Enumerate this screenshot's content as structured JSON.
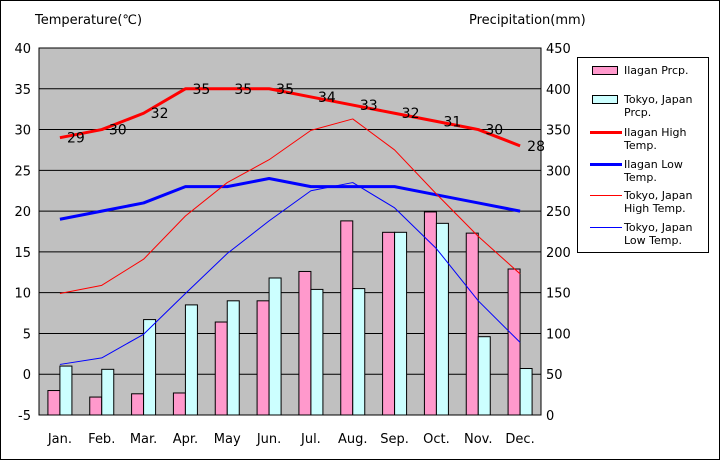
{
  "chart_data": {
    "type": "bar+line",
    "categories": [
      "Jan.",
      "Feb.",
      "Mar.",
      "Apr.",
      "May",
      "Jun.",
      "Jul.",
      "Aug.",
      "Sep.",
      "Oct.",
      "Nov.",
      "Dec."
    ],
    "left_axis": {
      "label": "Temperature(℃)",
      "range": [
        -5,
        40
      ],
      "ticks": [
        -5,
        0,
        5,
        10,
        15,
        20,
        25,
        30,
        35,
        40
      ]
    },
    "right_axis": {
      "label": "Precipitation(mm)",
      "range": [
        0,
        450
      ],
      "ticks": [
        0,
        50,
        100,
        150,
        200,
        250,
        300,
        350,
        400,
        450
      ]
    },
    "grid": true,
    "legend_position": "right",
    "bar_series": [
      {
        "name": "Ilagan Prcp.",
        "color": "#ff99cc",
        "axis": "right",
        "values": [
          30,
          22,
          26,
          27,
          114,
          140,
          176,
          238,
          224,
          249,
          223,
          179
        ]
      },
      {
        "name": "Tokyo, Japan Prcp.",
        "color": "#ccffff",
        "axis": "right",
        "values": [
          60,
          56,
          117,
          135,
          140,
          168,
          154,
          155,
          224,
          235,
          96,
          57
        ]
      }
    ],
    "line_series": [
      {
        "name": "Ilagan High Temp.",
        "color": "#ff0000",
        "width": 3,
        "axis": "left",
        "values": [
          29,
          30,
          32,
          35,
          35,
          35,
          34,
          33,
          32,
          31,
          30,
          28
        ],
        "labels_shown": true
      },
      {
        "name": "Ilagan Low Temp.",
        "color": "#0000ff",
        "width": 3,
        "axis": "left",
        "values": [
          19,
          20,
          21,
          23,
          23,
          24,
          23,
          23,
          23,
          22,
          21,
          20
        ]
      },
      {
        "name": "Tokyo, Japan High Temp.",
        "color": "#ff0000",
        "width": 1,
        "axis": "left",
        "values": [
          9.9,
          10.9,
          14.1,
          19.4,
          23.5,
          26.3,
          29.9,
          31.3,
          27.5,
          22.1,
          16.9,
          12.3
        ]
      },
      {
        "name": "Tokyo, Japan Low Temp.",
        "color": "#0000ff",
        "width": 1,
        "axis": "left",
        "values": [
          1.2,
          2.0,
          4.9,
          9.9,
          14.8,
          18.8,
          22.5,
          23.5,
          20.4,
          15.4,
          9.0,
          3.9
        ]
      }
    ]
  },
  "legend": {
    "items": [
      {
        "kind": "bar",
        "series": "Ilagan Prcp.",
        "text": "Ilagan Prcp."
      },
      {
        "kind": "bar",
        "series": "Tokyo, Japan Prcp.",
        "text": "Tokyo, Japan Prcp."
      },
      {
        "kind": "line",
        "series": "Ilagan High Temp.",
        "text": "Ilagan High Temp."
      },
      {
        "kind": "line",
        "series": "Ilagan Low Temp.",
        "text": "Ilagan Low Temp."
      },
      {
        "kind": "line",
        "series": "Tokyo, Japan High Temp.",
        "text": "Tokyo, Japan High Temp."
      },
      {
        "kind": "line",
        "series": "Tokyo, Japan Low Temp.",
        "text": "Tokyo, Japan Low Temp."
      }
    ]
  },
  "colors": {
    "plot_background": "#c0c0c0",
    "gridline": "#000000"
  }
}
